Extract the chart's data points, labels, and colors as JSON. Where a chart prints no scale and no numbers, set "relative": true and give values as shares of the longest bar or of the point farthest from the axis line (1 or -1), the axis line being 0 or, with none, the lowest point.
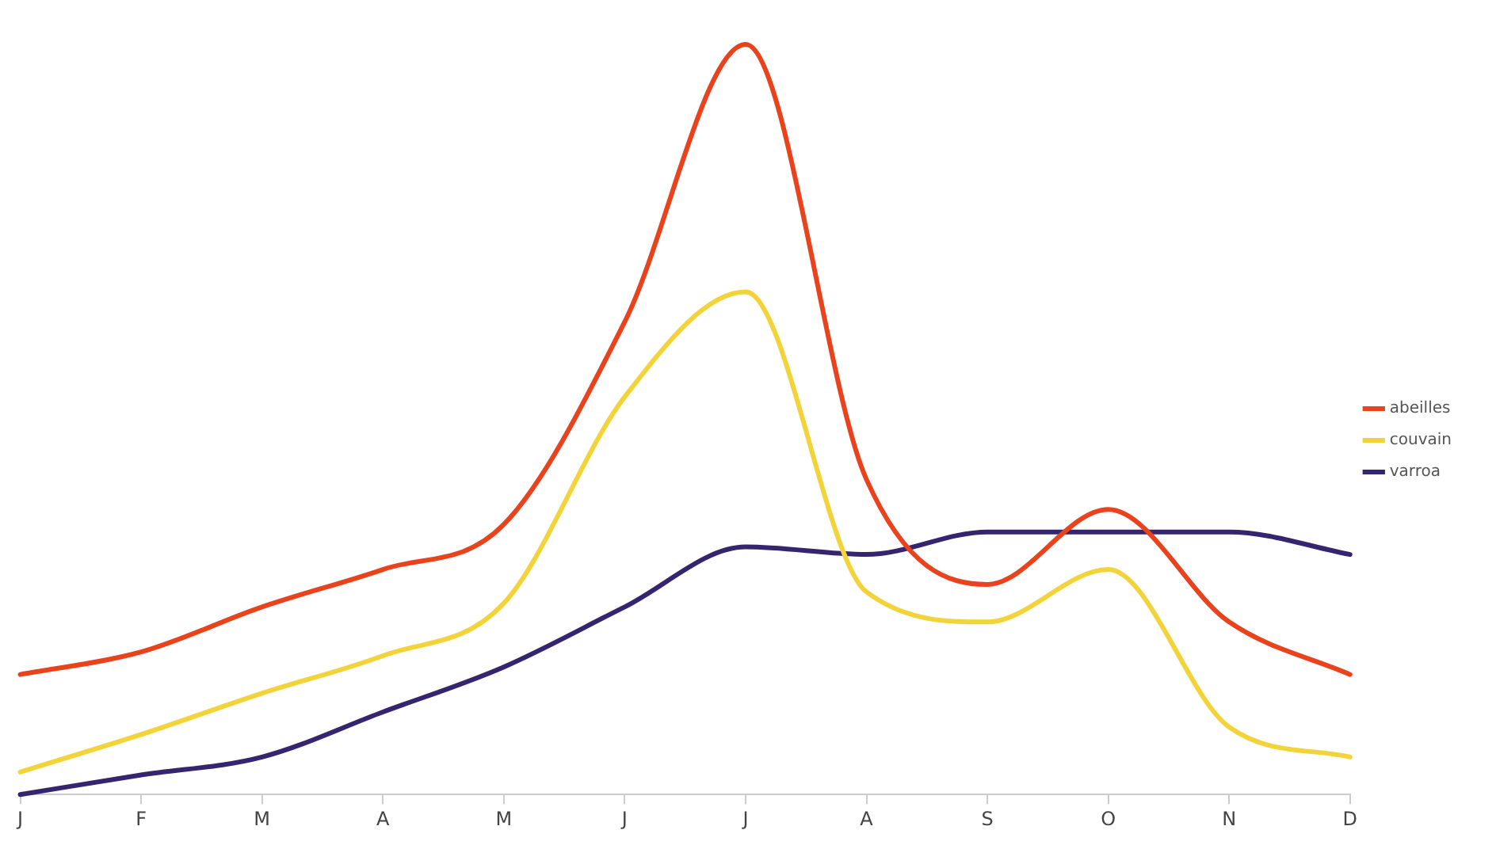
{
  "chart_data": {
    "type": "line",
    "relative": true,
    "categories": [
      "J",
      "F",
      "M",
      "A",
      "M",
      "J",
      "J",
      "A",
      "S",
      "O",
      "N",
      "D"
    ],
    "series": [
      {
        "name": "abeilles",
        "color": "#e8431c",
        "values": [
          0.16,
          0.19,
          0.25,
          0.3,
          0.36,
          0.63,
          1,
          0.42,
          0.28,
          0.38,
          0.23,
          0.16
        ]
      },
      {
        "name": "couvain",
        "color": "#f2d43a",
        "values": [
          0.03,
          0.08,
          0.135,
          0.185,
          0.255,
          0.53,
          0.67,
          0.27,
          0.23,
          0.3,
          0.09,
          0.05
        ]
      },
      {
        "name": "varroa",
        "color": "#35246e",
        "values": [
          0,
          0.026,
          0.05,
          0.11,
          0.17,
          0.25,
          0.33,
          0.32,
          0.35,
          0.35,
          0.35,
          0.32
        ]
      }
    ],
    "legend": "right",
    "marker": "none",
    "line_style": "solid",
    "grid": false
  }
}
